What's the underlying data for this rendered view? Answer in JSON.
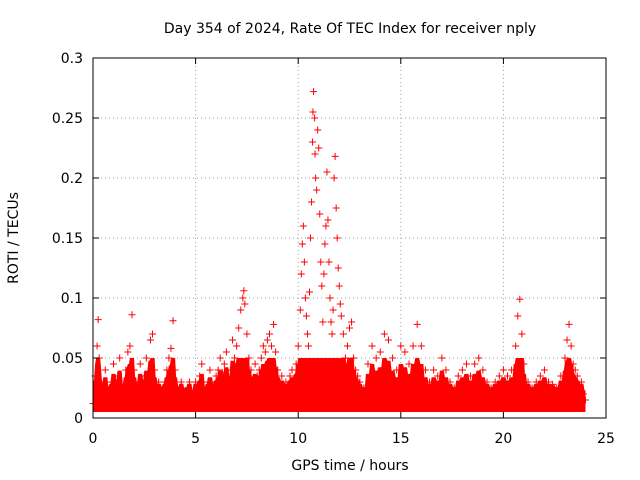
{
  "chart_data": {
    "type": "scatter",
    "title": "Day 354 of 2024, Rate Of TEC Index for receiver nply",
    "xlabel": "GPS time / hours",
    "ylabel": "ROTI / TECUs",
    "xlim": [
      0,
      25
    ],
    "ylim": [
      0,
      0.3
    ],
    "x_ticks": [
      "0",
      "5",
      "10",
      "15",
      "20",
      "25"
    ],
    "y_ticks": [
      "0",
      "0.05",
      "0.1",
      "0.15",
      "0.2",
      "0.25",
      "0.3"
    ],
    "grid": true,
    "marker": "+",
    "color": "#ff0000",
    "series": [
      {
        "points": [
          [
            0.0,
            0.012
          ],
          [
            0.1,
            0.035
          ],
          [
            0.2,
            0.06
          ],
          [
            0.25,
            0.082
          ],
          [
            0.3,
            0.05
          ],
          [
            0.4,
            0.03
          ],
          [
            0.5,
            0.02
          ],
          [
            0.6,
            0.04
          ],
          [
            0.7,
            0.025
          ],
          [
            0.8,
            0.015
          ],
          [
            0.9,
            0.03
          ],
          [
            1.0,
            0.045
          ],
          [
            1.1,
            0.02
          ],
          [
            1.2,
            0.035
          ],
          [
            1.3,
            0.05
          ],
          [
            1.4,
            0.028
          ],
          [
            1.5,
            0.018
          ],
          [
            1.6,
            0.04
          ],
          [
            1.7,
            0.055
          ],
          [
            1.8,
            0.06
          ],
          [
            1.9,
            0.086
          ],
          [
            2.0,
            0.04
          ],
          [
            2.1,
            0.025
          ],
          [
            2.2,
            0.03
          ],
          [
            2.3,
            0.045
          ],
          [
            2.4,
            0.02
          ],
          [
            2.5,
            0.035
          ],
          [
            2.6,
            0.05
          ],
          [
            2.7,
            0.03
          ],
          [
            2.8,
            0.065
          ],
          [
            2.9,
            0.07
          ],
          [
            3.0,
            0.04
          ],
          [
            3.1,
            0.02
          ],
          [
            3.2,
            0.03
          ],
          [
            3.3,
            0.025
          ],
          [
            3.4,
            0.018
          ],
          [
            3.5,
            0.03
          ],
          [
            3.6,
            0.04
          ],
          [
            3.7,
            0.05
          ],
          [
            3.8,
            0.058
          ],
          [
            3.9,
            0.081
          ],
          [
            4.0,
            0.04
          ],
          [
            4.1,
            0.025
          ],
          [
            4.2,
            0.02
          ],
          [
            4.3,
            0.03
          ],
          [
            4.4,
            0.022
          ],
          [
            4.5,
            0.018
          ],
          [
            4.6,
            0.025
          ],
          [
            4.7,
            0.03
          ],
          [
            4.8,
            0.02
          ],
          [
            4.9,
            0.015
          ],
          [
            5.0,
            0.03
          ],
          [
            5.1,
            0.02
          ],
          [
            5.2,
            0.035
          ],
          [
            5.3,
            0.045
          ],
          [
            5.4,
            0.025
          ],
          [
            5.5,
            0.02
          ],
          [
            5.6,
            0.03
          ],
          [
            5.7,
            0.04
          ],
          [
            5.8,
            0.03
          ],
          [
            5.9,
            0.02
          ],
          [
            6.0,
            0.035
          ],
          [
            6.1,
            0.04
          ],
          [
            6.2,
            0.05
          ],
          [
            6.3,
            0.038
          ],
          [
            6.4,
            0.045
          ],
          [
            6.5,
            0.055
          ],
          [
            6.6,
            0.03
          ],
          [
            6.7,
            0.04
          ],
          [
            6.8,
            0.065
          ],
          [
            6.9,
            0.05
          ],
          [
            7.0,
            0.06
          ],
          [
            7.1,
            0.075
          ],
          [
            7.2,
            0.09
          ],
          [
            7.3,
            0.1
          ],
          [
            7.35,
            0.106
          ],
          [
            7.4,
            0.095
          ],
          [
            7.5,
            0.07
          ],
          [
            7.6,
            0.05
          ],
          [
            7.7,
            0.04
          ],
          [
            7.8,
            0.03
          ],
          [
            7.9,
            0.045
          ],
          [
            8.0,
            0.035
          ],
          [
            8.1,
            0.04
          ],
          [
            8.2,
            0.05
          ],
          [
            8.3,
            0.06
          ],
          [
            8.4,
            0.055
          ],
          [
            8.5,
            0.065
          ],
          [
            8.6,
            0.07
          ],
          [
            8.7,
            0.06
          ],
          [
            8.8,
            0.078
          ],
          [
            8.9,
            0.055
          ],
          [
            9.0,
            0.04
          ],
          [
            9.1,
            0.03
          ],
          [
            9.2,
            0.035
          ],
          [
            9.3,
            0.025
          ],
          [
            9.4,
            0.03
          ],
          [
            9.5,
            0.028
          ],
          [
            9.6,
            0.035
          ],
          [
            9.7,
            0.04
          ],
          [
            9.8,
            0.03
          ],
          [
            9.9,
            0.045
          ],
          [
            10.0,
            0.06
          ],
          [
            10.1,
            0.09
          ],
          [
            10.15,
            0.12
          ],
          [
            10.2,
            0.145
          ],
          [
            10.25,
            0.16
          ],
          [
            10.3,
            0.13
          ],
          [
            10.35,
            0.1
          ],
          [
            10.4,
            0.085
          ],
          [
            10.45,
            0.07
          ],
          [
            10.5,
            0.06
          ],
          [
            10.55,
            0.105
          ],
          [
            10.6,
            0.15
          ],
          [
            10.65,
            0.18
          ],
          [
            10.7,
            0.23
          ],
          [
            10.72,
            0.255
          ],
          [
            10.75,
            0.272
          ],
          [
            10.8,
            0.25
          ],
          [
            10.82,
            0.22
          ],
          [
            10.85,
            0.2
          ],
          [
            10.9,
            0.19
          ],
          [
            10.95,
            0.24
          ],
          [
            11.0,
            0.225
          ],
          [
            11.05,
            0.17
          ],
          [
            11.1,
            0.13
          ],
          [
            11.15,
            0.11
          ],
          [
            11.2,
            0.08
          ],
          [
            11.25,
            0.12
          ],
          [
            11.3,
            0.145
          ],
          [
            11.35,
            0.16
          ],
          [
            11.4,
            0.205
          ],
          [
            11.45,
            0.165
          ],
          [
            11.5,
            0.13
          ],
          [
            11.55,
            0.1
          ],
          [
            11.6,
            0.08
          ],
          [
            11.65,
            0.07
          ],
          [
            11.7,
            0.09
          ],
          [
            11.75,
            0.2
          ],
          [
            11.8,
            0.218
          ],
          [
            11.85,
            0.175
          ],
          [
            11.9,
            0.15
          ],
          [
            11.95,
            0.125
          ],
          [
            12.0,
            0.11
          ],
          [
            12.05,
            0.095
          ],
          [
            12.1,
            0.085
          ],
          [
            12.2,
            0.07
          ],
          [
            12.3,
            0.05
          ],
          [
            12.4,
            0.06
          ],
          [
            12.5,
            0.075
          ],
          [
            12.6,
            0.08
          ],
          [
            12.7,
            0.05
          ],
          [
            12.8,
            0.04
          ],
          [
            12.9,
            0.035
          ],
          [
            13.0,
            0.03
          ],
          [
            13.2,
            0.025
          ],
          [
            13.4,
            0.045
          ],
          [
            13.6,
            0.06
          ],
          [
            13.8,
            0.05
          ],
          [
            14.0,
            0.055
          ],
          [
            14.2,
            0.07
          ],
          [
            14.4,
            0.065
          ],
          [
            14.6,
            0.05
          ],
          [
            14.8,
            0.04
          ],
          [
            15.0,
            0.06
          ],
          [
            15.2,
            0.055
          ],
          [
            15.4,
            0.045
          ],
          [
            15.6,
            0.06
          ],
          [
            15.8,
            0.078
          ],
          [
            16.0,
            0.06
          ],
          [
            16.2,
            0.04
          ],
          [
            16.4,
            0.03
          ],
          [
            16.6,
            0.04
          ],
          [
            16.8,
            0.035
          ],
          [
            17.0,
            0.05
          ],
          [
            17.2,
            0.04
          ],
          [
            17.4,
            0.03
          ],
          [
            17.6,
            0.025
          ],
          [
            17.8,
            0.035
          ],
          [
            18.0,
            0.04
          ],
          [
            18.2,
            0.045
          ],
          [
            18.4,
            0.035
          ],
          [
            18.6,
            0.045
          ],
          [
            18.8,
            0.05
          ],
          [
            19.0,
            0.04
          ],
          [
            19.2,
            0.03
          ],
          [
            19.4,
            0.025
          ],
          [
            19.6,
            0.03
          ],
          [
            19.8,
            0.035
          ],
          [
            20.0,
            0.04
          ],
          [
            20.2,
            0.035
          ],
          [
            20.4,
            0.04
          ],
          [
            20.6,
            0.06
          ],
          [
            20.7,
            0.085
          ],
          [
            20.8,
            0.099
          ],
          [
            20.9,
            0.07
          ],
          [
            21.0,
            0.045
          ],
          [
            21.2,
            0.03
          ],
          [
            21.4,
            0.025
          ],
          [
            21.6,
            0.03
          ],
          [
            21.8,
            0.035
          ],
          [
            22.0,
            0.04
          ],
          [
            22.2,
            0.03
          ],
          [
            22.4,
            0.028
          ],
          [
            22.6,
            0.025
          ],
          [
            22.8,
            0.035
          ],
          [
            23.0,
            0.05
          ],
          [
            23.1,
            0.065
          ],
          [
            23.2,
            0.078
          ],
          [
            23.3,
            0.06
          ],
          [
            23.4,
            0.045
          ],
          [
            23.5,
            0.04
          ],
          [
            23.6,
            0.035
          ],
          [
            23.8,
            0.03
          ],
          [
            23.9,
            0.02
          ],
          [
            24.0,
            0.015
          ]
        ]
      }
    ]
  }
}
